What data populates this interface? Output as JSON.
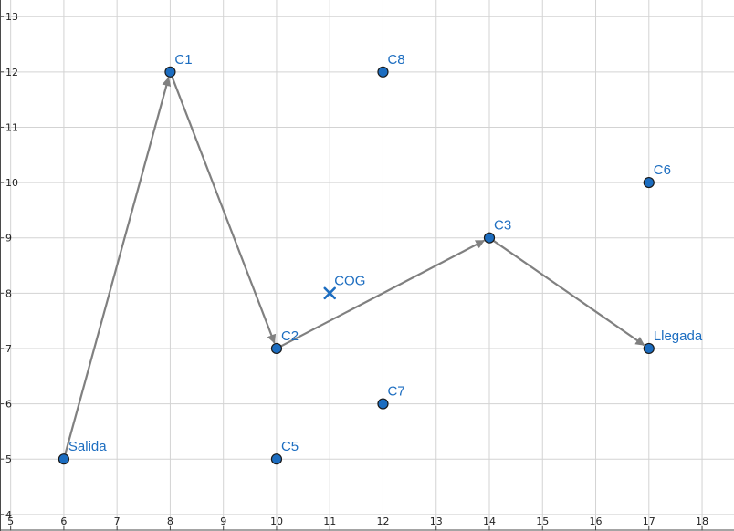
{
  "chart_data": {
    "type": "scatter",
    "xlim": [
      4.8,
      18.6
    ],
    "ylim": [
      3.7,
      13.3
    ],
    "x_ticks": [
      5,
      6,
      7,
      8,
      9,
      10,
      11,
      12,
      13,
      14,
      15,
      16,
      17,
      18
    ],
    "y_ticks": [
      4,
      5,
      6,
      7,
      8,
      9,
      10,
      11,
      12,
      13
    ],
    "grid": true,
    "points": [
      {
        "label": "Salida",
        "x": 6,
        "y": 5
      },
      {
        "label": "C1",
        "x": 8,
        "y": 12
      },
      {
        "label": "C2",
        "x": 10,
        "y": 7
      },
      {
        "label": "C3",
        "x": 14,
        "y": 9
      },
      {
        "label": "Llegada",
        "x": 17,
        "y": 7
      },
      {
        "label": "C5",
        "x": 10,
        "y": 5
      },
      {
        "label": "C6",
        "x": 17,
        "y": 10
      },
      {
        "label": "C7",
        "x": 12,
        "y": 6
      },
      {
        "label": "C8",
        "x": 12,
        "y": 12
      }
    ],
    "cog": {
      "label": "COG",
      "x": 11,
      "y": 8
    },
    "route": [
      "Salida",
      "C1",
      "C2",
      "C3",
      "Llegada"
    ]
  },
  "colors": {
    "point_fill": "#1c6dc0",
    "label_text": "#1c6dc0",
    "route_arrow": "#808080",
    "cog_marker": "#1c6dc0",
    "grid": "#d3d3d3",
    "axis": "#4a4a4a"
  }
}
